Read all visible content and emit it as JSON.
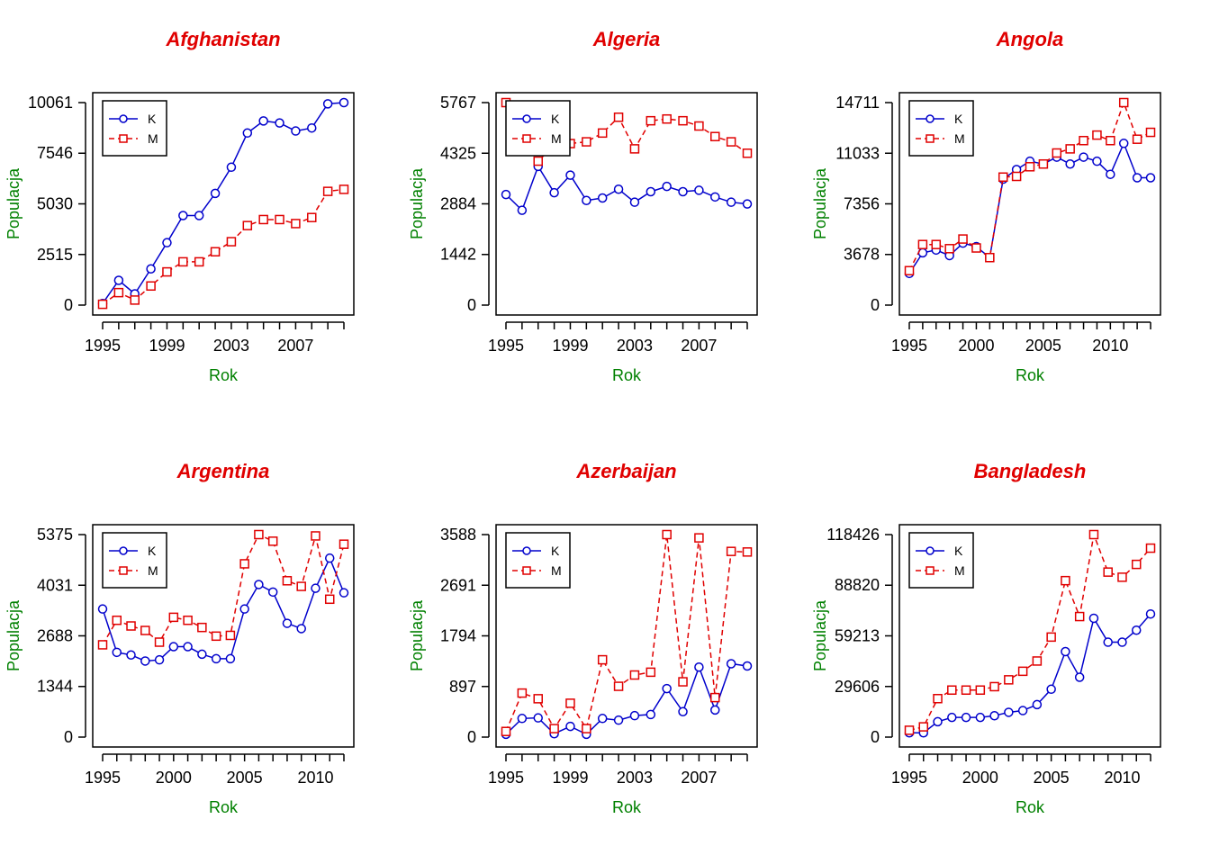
{
  "colors": {
    "K": "#0000cc",
    "M": "#e00000",
    "title": "#e00000",
    "axis_label": "#008000"
  },
  "chart_data": [
    {
      "type": "line",
      "title": "Afghanistan",
      "xlabel": "Rok",
      "ylabel": "Populacja",
      "x": [
        1995,
        1996,
        1997,
        1998,
        1999,
        2000,
        2001,
        2002,
        2003,
        2004,
        2005,
        2006,
        2007,
        2008,
        2009,
        2010
      ],
      "xticks": [
        1995,
        1999,
        2003,
        2007
      ],
      "xlim": [
        1995,
        2010
      ],
      "yticks": [
        0,
        2515,
        5030,
        7546,
        10061
      ],
      "ylim": [
        0,
        10061
      ],
      "legend_position": "top-left",
      "series": [
        {
          "name": "K",
          "values": [
            80,
            1230,
            560,
            1800,
            3100,
            4450,
            4450,
            5550,
            6850,
            8550,
            9150,
            9050,
            8650,
            8800,
            10000,
            10061
          ]
        },
        {
          "name": "M",
          "values": [
            40,
            620,
            250,
            950,
            1650,
            2150,
            2150,
            2650,
            3150,
            3950,
            4250,
            4250,
            4050,
            4350,
            5650,
            5750
          ]
        }
      ]
    },
    {
      "type": "line",
      "title": "Algeria",
      "xlabel": "Rok",
      "ylabel": "Populacja",
      "x": [
        1995,
        1996,
        1997,
        1998,
        1999,
        2000,
        2001,
        2002,
        2003,
        2004,
        2005,
        2006,
        2007,
        2008,
        2009,
        2010
      ],
      "xticks": [
        1995,
        1999,
        2003,
        2007
      ],
      "xlim": [
        1995,
        2010
      ],
      "yticks": [
        0,
        1442,
        2884,
        4325,
        5767
      ],
      "ylim": [
        0,
        5767
      ],
      "legend_position": "top-left",
      "series": [
        {
          "name": "K",
          "values": [
            3150,
            2700,
            3950,
            3200,
            3700,
            2980,
            3050,
            3300,
            2930,
            3230,
            3380,
            3230,
            3270,
            3080,
            2930,
            2880
          ]
        },
        {
          "name": "M",
          "values": [
            5767,
            4500,
            4100,
            4550,
            4600,
            4650,
            4900,
            5350,
            4450,
            5250,
            5300,
            5250,
            5100,
            4800,
            4650,
            4325
          ]
        }
      ]
    },
    {
      "type": "line",
      "title": "Angola",
      "xlabel": "Rok",
      "ylabel": "Populacja",
      "x": [
        1995,
        1996,
        1997,
        1998,
        1999,
        2000,
        2001,
        2002,
        2003,
        2004,
        2005,
        2006,
        2007,
        2008,
        2009,
        2010,
        2011,
        2012,
        2013
      ],
      "xticks": [
        1995,
        2000,
        2005,
        2010
      ],
      "xlim": [
        1995,
        2013
      ],
      "yticks": [
        0,
        3678,
        7356,
        11033,
        14711
      ],
      "ylim": [
        0,
        14711
      ],
      "legend_position": "top-left",
      "series": [
        {
          "name": "K",
          "values": [
            2300,
            3800,
            4000,
            3600,
            4500,
            4250,
            3450,
            9150,
            9850,
            10450,
            10250,
            10750,
            10250,
            10750,
            10450,
            9500,
            11750,
            9250,
            9250
          ]
        },
        {
          "name": "M",
          "values": [
            2500,
            4400,
            4400,
            4100,
            4800,
            4150,
            3450,
            9300,
            9350,
            10050,
            10250,
            11050,
            11350,
            11950,
            12350,
            11950,
            14711,
            12050,
            12550
          ]
        }
      ]
    },
    {
      "type": "line",
      "title": "Argentina",
      "xlabel": "Rok",
      "ylabel": "Populacja",
      "x": [
        1995,
        1996,
        1997,
        1998,
        1999,
        2000,
        2001,
        2002,
        2003,
        2004,
        2005,
        2006,
        2007,
        2008,
        2009,
        2010,
        2011,
        2012
      ],
      "xticks": [
        1995,
        2000,
        2005,
        2010
      ],
      "xlim": [
        1995,
        2012
      ],
      "yticks": [
        0,
        1344,
        2688,
        4031,
        5375
      ],
      "ylim": [
        0,
        5375
      ],
      "legend_position": "top-left",
      "series": [
        {
          "name": "K",
          "values": [
            3400,
            2250,
            2180,
            2020,
            2050,
            2400,
            2400,
            2200,
            2080,
            2080,
            3400,
            4050,
            3850,
            3020,
            2880,
            3950,
            4750,
            3830
          ]
        },
        {
          "name": "M",
          "values": [
            2450,
            3100,
            2950,
            2830,
            2520,
            3180,
            3100,
            2910,
            2680,
            2700,
            4600,
            5375,
            5200,
            4150,
            4000,
            5340,
            3660,
            5120
          ]
        }
      ]
    },
    {
      "type": "line",
      "title": "Azerbaijan",
      "xlabel": "Rok",
      "ylabel": "Populacja",
      "x": [
        1995,
        1996,
        1997,
        1998,
        1999,
        2000,
        2001,
        2002,
        2003,
        2004,
        2005,
        2006,
        2007,
        2008,
        2009,
        2010
      ],
      "xticks": [
        1995,
        1999,
        2003,
        2007
      ],
      "xlim": [
        1995,
        2010
      ],
      "yticks": [
        0,
        897,
        1794,
        2691,
        3588
      ],
      "ylim": [
        0,
        3588
      ],
      "legend_position": "top-left",
      "series": [
        {
          "name": "K",
          "values": [
            50,
            330,
            340,
            60,
            190,
            50,
            330,
            300,
            380,
            400,
            860,
            450,
            1240,
            480,
            1300,
            1260
          ]
        },
        {
          "name": "M",
          "values": [
            100,
            780,
            680,
            150,
            600,
            150,
            1370,
            900,
            1100,
            1150,
            3588,
            980,
            3530,
            700,
            3290,
            3280
          ]
        }
      ]
    },
    {
      "type": "line",
      "title": "Bangladesh",
      "xlabel": "Rok",
      "ylabel": "Populacja",
      "x": [
        1995,
        1996,
        1997,
        1998,
        1999,
        2000,
        2001,
        2002,
        2003,
        2004,
        2005,
        2006,
        2007,
        2008,
        2009,
        2010,
        2011,
        2012
      ],
      "xticks": [
        1995,
        2000,
        2005,
        2010
      ],
      "xlim": [
        1995,
        2012
      ],
      "yticks": [
        0,
        29606,
        59213,
        88820,
        118426
      ],
      "ylim": [
        0,
        118426
      ],
      "legend_position": "top-left",
      "series": [
        {
          "name": "K",
          "values": [
            2500,
            2500,
            9000,
            11500,
            11500,
            11500,
            12500,
            14500,
            15500,
            19000,
            28000,
            50000,
            35000,
            69500,
            55500,
            55500,
            62500,
            72000
          ]
        },
        {
          "name": "M",
          "values": [
            4000,
            6000,
            22500,
            27500,
            27500,
            27500,
            29500,
            33500,
            38500,
            44500,
            58500,
            91500,
            70500,
            118426,
            96500,
            93500,
            101000,
            110500
          ]
        }
      ]
    }
  ]
}
